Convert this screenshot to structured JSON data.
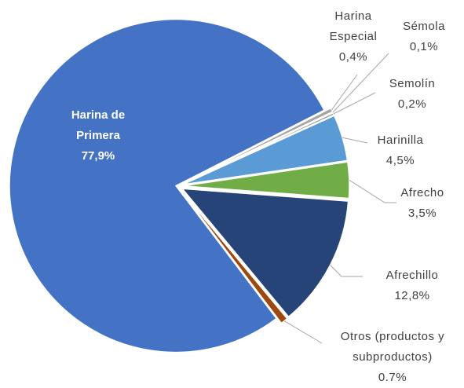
{
  "chart_data": {
    "type": "pie",
    "categories": [
      "Harina de Primera",
      "Harina Especial",
      "Sémola",
      "Semolín",
      "Harinilla",
      "Afrecho",
      "Afrechillo",
      "Otros (productos y subproductos)"
    ],
    "values": [
      77.9,
      0.4,
      0.1,
      0.2,
      4.5,
      3.5,
      12.8,
      0.7
    ],
    "value_labels": [
      "77,9%",
      "0,4%",
      "0,1%",
      "0,2%",
      "4,5%",
      "3,5%",
      "12,8%",
      "0.7%"
    ],
    "colors": [
      "#4472c4",
      "#a5a5a5",
      "#ffc000",
      "#7f7f7f",
      "#5b9bd5",
      "#70ad47",
      "#264478",
      "#9e480e"
    ]
  }
}
